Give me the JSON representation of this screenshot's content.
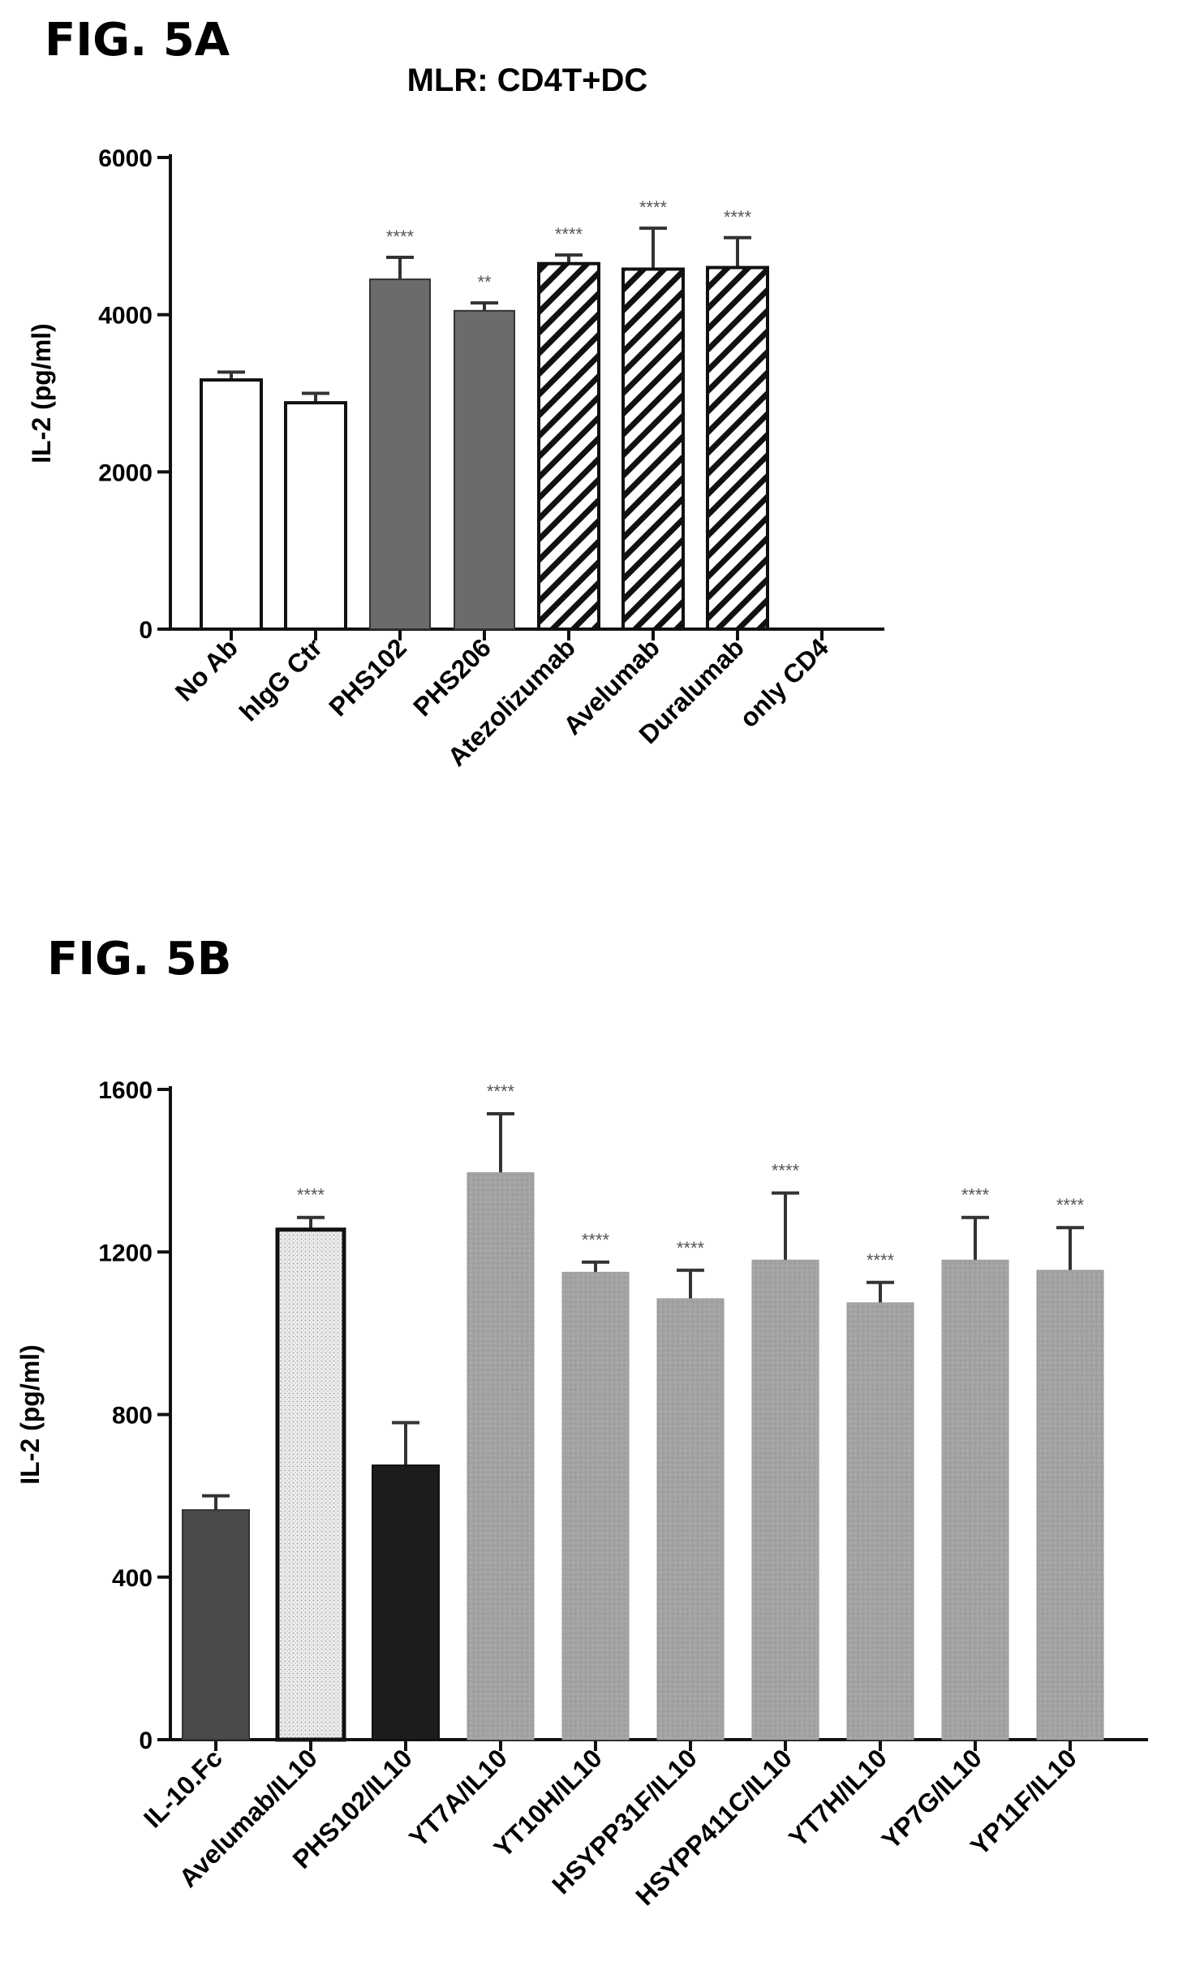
{
  "figures": [
    {
      "label": "FIG. 5A"
    },
    {
      "label": "FIG. 5B"
    }
  ],
  "chart_data": [
    {
      "type": "bar",
      "title": "MLR: CD4T+DC",
      "xlabel": "",
      "ylabel": "IL-2 (pg/ml)",
      "ylim": [
        0,
        6000
      ],
      "yticks": [
        0,
        2000,
        4000,
        6000
      ],
      "grid": false,
      "categories": [
        "No Ab",
        "hIgG Ctr",
        "PHS102",
        "PHS206",
        "Atezolizumab",
        "Avelumab",
        "Duralumab",
        "only CD4"
      ],
      "values": [
        3170,
        2880,
        4450,
        4050,
        4650,
        4580,
        4600,
        0
      ],
      "errors": [
        100,
        120,
        280,
        100,
        110,
        520,
        380,
        0
      ],
      "fills": [
        "white",
        "white",
        "solid",
        "solid",
        "hatch",
        "hatch",
        "hatch",
        "white"
      ],
      "significance": [
        "",
        "",
        "****",
        "**",
        "****",
        "****",
        "****",
        ""
      ],
      "colors": {
        "solid": "#6b6b6b",
        "outline": "#111111"
      }
    },
    {
      "type": "bar",
      "title": "",
      "xlabel": "",
      "ylabel": "IL-2 (pg/ml)",
      "ylim": [
        0,
        1600
      ],
      "yticks": [
        0,
        400,
        800,
        1200,
        1600
      ],
      "grid": false,
      "categories": [
        "IL-10.Fc",
        "Avelumab/IL10",
        "PHS102/IL10",
        "YT7A/IL10",
        "YT10H/IL10",
        "HSYPP31F/IL10",
        "HSYPP411C/IL10",
        "YT7H/IL10",
        "YP7G/IL10",
        "YP11F/IL10"
      ],
      "values": [
        565,
        1255,
        675,
        1395,
        1150,
        1085,
        1180,
        1075,
        1180,
        1155
      ],
      "errors": [
        35,
        30,
        105,
        145,
        25,
        70,
        165,
        50,
        105,
        105
      ],
      "fills": [
        "darkgray",
        "dotted",
        "black",
        "gray",
        "gray",
        "gray",
        "gray",
        "gray",
        "gray",
        "gray"
      ],
      "significance": [
        "",
        "****",
        "",
        "****",
        "****",
        "****",
        "****",
        "****",
        "****",
        "****"
      ],
      "colors": {
        "darkgray": "#4a4a4a",
        "black": "#1c1c1c",
        "gray": "#a3a3a3",
        "dotted": "#e6e6e6"
      }
    }
  ]
}
